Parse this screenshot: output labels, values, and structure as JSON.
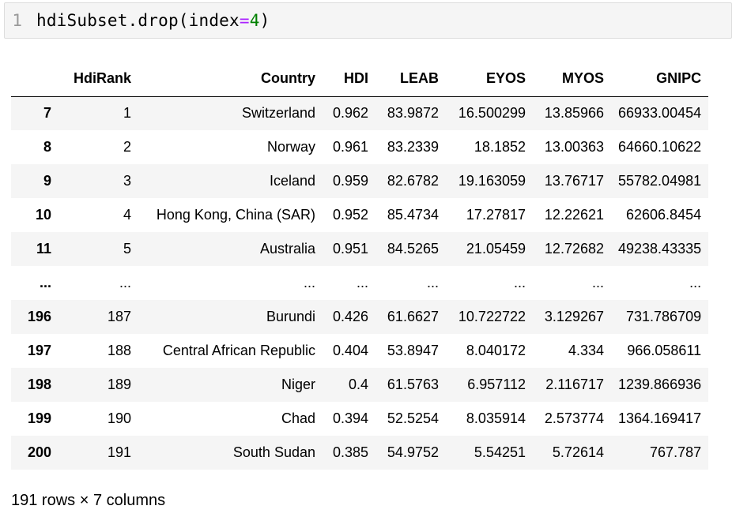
{
  "code_cell": {
    "line_number": "1",
    "code_prefix": "hdiSubset.drop(index",
    "code_operator": "=",
    "code_number": "4",
    "code_suffix": ")"
  },
  "table": {
    "columns": [
      "",
      "HdiRank",
      "Country",
      "HDI",
      "LEAB",
      "EYOS",
      "MYOS",
      "GNIPC"
    ],
    "rows": [
      [
        "7",
        "1",
        "Switzerland",
        "0.962",
        "83.9872",
        "16.500299",
        "13.85966",
        "66933.00454"
      ],
      [
        "8",
        "2",
        "Norway",
        "0.961",
        "83.2339",
        "18.1852",
        "13.00363",
        "64660.10622"
      ],
      [
        "9",
        "3",
        "Iceland",
        "0.959",
        "82.6782",
        "19.163059",
        "13.76717",
        "55782.04981"
      ],
      [
        "10",
        "4",
        "Hong Kong, China (SAR)",
        "0.952",
        "85.4734",
        "17.27817",
        "12.22621",
        "62606.8454"
      ],
      [
        "11",
        "5",
        "Australia",
        "0.951",
        "84.5265",
        "21.05459",
        "12.72682",
        "49238.43335"
      ],
      [
        "...",
        "...",
        "...",
        "...",
        "...",
        "...",
        "...",
        "..."
      ],
      [
        "196",
        "187",
        "Burundi",
        "0.426",
        "61.6627",
        "10.722722",
        "3.129267",
        "731.786709"
      ],
      [
        "197",
        "188",
        "Central African Republic",
        "0.404",
        "53.8947",
        "8.040172",
        "4.334",
        "966.058611"
      ],
      [
        "198",
        "189",
        "Niger",
        "0.4",
        "61.5763",
        "6.957112",
        "2.116717",
        "1239.866936"
      ],
      [
        "199",
        "190",
        "Chad",
        "0.394",
        "52.5254",
        "8.035914",
        "2.573774",
        "1364.169417"
      ],
      [
        "200",
        "191",
        "South Sudan",
        "0.385",
        "54.9752",
        "5.54251",
        "5.72614",
        "767.787"
      ]
    ]
  },
  "shape_text": "191 rows × 7 columns"
}
